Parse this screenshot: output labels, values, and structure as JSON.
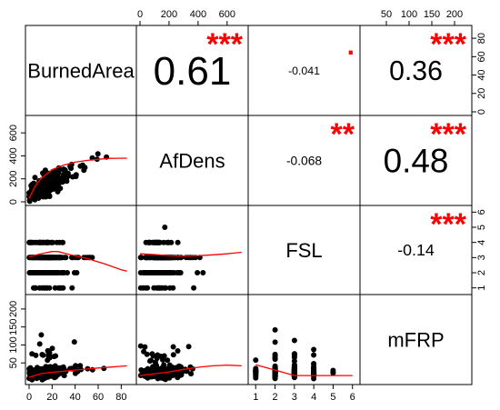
{
  "chart_data": {
    "type": "scatter-matrix",
    "variables": [
      "BurnedArea",
      "AfDens",
      "FSL",
      "mFRP"
    ],
    "colors": {
      "points": "#000000",
      "smooth": "#ff0000",
      "stars": "#ff0000",
      "frame": "#000000"
    },
    "axes": {
      "BurnedArea": {
        "range": [
          0,
          90
        ],
        "ticks": [
          0,
          20,
          40,
          60,
          80
        ],
        "tick_labels": [
          "0",
          "20",
          "40",
          "60",
          "80"
        ]
      },
      "AfDens": {
        "range": [
          0,
          720
        ],
        "ticks": [
          0,
          200,
          400,
          600
        ],
        "tick_labels": [
          "0",
          "200",
          "400",
          "600"
        ]
      },
      "FSL": {
        "range": [
          0.8,
          6.2
        ],
        "ticks": [
          1,
          2,
          3,
          4,
          5,
          6
        ],
        "tick_labels": [
          "1",
          "2",
          "3",
          "4",
          "5",
          "6"
        ]
      },
      "mFRP": {
        "range": [
          0,
          230
        ],
        "ticks": [
          50,
          100,
          150,
          200
        ],
        "tick_labels": [
          "50",
          "100",
          "150",
          "200"
        ]
      }
    },
    "correlations": [
      {
        "row": 0,
        "col": 1,
        "value": "0.61",
        "stars": "***"
      },
      {
        "row": 0,
        "col": 2,
        "value": "-0.041",
        "stars": "."
      },
      {
        "row": 0,
        "col": 3,
        "value": "0.36",
        "stars": "***"
      },
      {
        "row": 1,
        "col": 2,
        "value": "-0.068",
        "stars": "**"
      },
      {
        "row": 1,
        "col": 3,
        "value": "0.48",
        "stars": "***"
      },
      {
        "row": 2,
        "col": 3,
        "value": "-0.14",
        "stars": "***"
      }
    ],
    "scatter_panels": [
      {
        "row": 1,
        "col": 0,
        "x": "BurnedArea",
        "y": "AfDens",
        "smooth": [
          [
            0,
            30
          ],
          [
            5,
            130
          ],
          [
            10,
            200
          ],
          [
            20,
            280
          ],
          [
            30,
            320
          ],
          [
            40,
            345
          ],
          [
            50,
            360
          ],
          [
            60,
            370
          ],
          [
            70,
            378
          ],
          [
            85,
            380
          ]
        ]
      },
      {
        "row": 2,
        "col": 0,
        "x": "BurnedArea",
        "y": "FSL",
        "smooth": [
          [
            0,
            3.05
          ],
          [
            10,
            3.25
          ],
          [
            20,
            3.4
          ],
          [
            25,
            3.4
          ],
          [
            35,
            3.2
          ],
          [
            50,
            2.95
          ],
          [
            65,
            2.6
          ],
          [
            80,
            2.2
          ],
          [
            85,
            2.1
          ]
        ]
      },
      {
        "row": 2,
        "col": 1,
        "x": "AfDens",
        "y": "FSL",
        "smooth": [
          [
            0,
            3.25
          ],
          [
            100,
            3.2
          ],
          [
            200,
            3.12
          ],
          [
            300,
            3.1
          ],
          [
            400,
            3.12
          ],
          [
            500,
            3.18
          ],
          [
            600,
            3.25
          ],
          [
            700,
            3.35
          ]
        ]
      },
      {
        "row": 3,
        "col": 0,
        "x": "BurnedArea",
        "y": "mFRP",
        "smooth": [
          [
            0,
            10
          ],
          [
            10,
            20
          ],
          [
            20,
            24
          ],
          [
            40,
            30
          ],
          [
            60,
            36
          ],
          [
            85,
            42
          ]
        ]
      },
      {
        "row": 3,
        "col": 1,
        "x": "AfDens",
        "y": "mFRP",
        "smooth": [
          [
            0,
            15
          ],
          [
            100,
            20
          ],
          [
            200,
            25
          ],
          [
            300,
            32
          ],
          [
            400,
            38
          ],
          [
            500,
            42
          ],
          [
            600,
            44
          ],
          [
            700,
            42
          ]
        ]
      },
      {
        "row": 3,
        "col": 2,
        "x": "FSL",
        "y": "mFRP",
        "smooth": [
          [
            1,
            45
          ],
          [
            2,
            30
          ],
          [
            3,
            15
          ],
          [
            4,
            15
          ],
          [
            5,
            15
          ],
          [
            6,
            15
          ]
        ]
      }
    ]
  }
}
